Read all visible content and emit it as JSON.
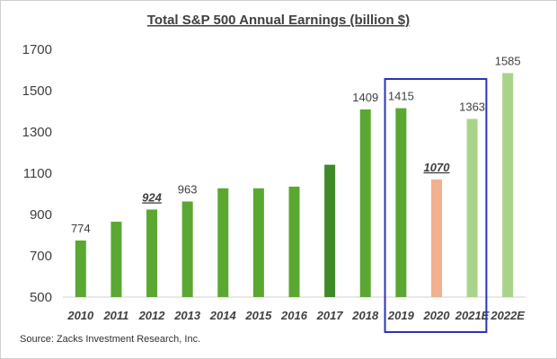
{
  "chart_data": {
    "type": "bar",
    "title": "Total S&P 500 Annual Earnings (billion $)",
    "categories": [
      "2010",
      "2011",
      "2012",
      "2013",
      "2014",
      "2015",
      "2016",
      "2017",
      "2018",
      "2019",
      "2020",
      "2021E",
      "2022E"
    ],
    "values": [
      774,
      865,
      924,
      963,
      1027,
      1027,
      1035,
      1141,
      1409,
      1415,
      1070,
      1363,
      1585
    ],
    "data_labels": [
      "774",
      "",
      "924",
      "963",
      "",
      "",
      "",
      "",
      "1409",
      "1415",
      "1070",
      "1363",
      "1585"
    ],
    "emphasized_labels": [
      "924",
      "1070"
    ],
    "bar_colors": [
      "#5aa832",
      "#5aa832",
      "#5aa832",
      "#5aa832",
      "#5aa832",
      "#5aa832",
      "#5aa832",
      "#3d8a26",
      "#5aa832",
      "#5aa832",
      "#f2b08c",
      "#a8d48a",
      "#a8d48a"
    ],
    "yticks": [
      500,
      700,
      900,
      1100,
      1300,
      1500,
      1700
    ],
    "ylim": [
      500,
      1700
    ],
    "grid": false,
    "highlight_box": {
      "from": "2019",
      "to": "2021E",
      "color": "#2a35b5"
    }
  },
  "source": "Source: Zacks Investment Research, Inc."
}
